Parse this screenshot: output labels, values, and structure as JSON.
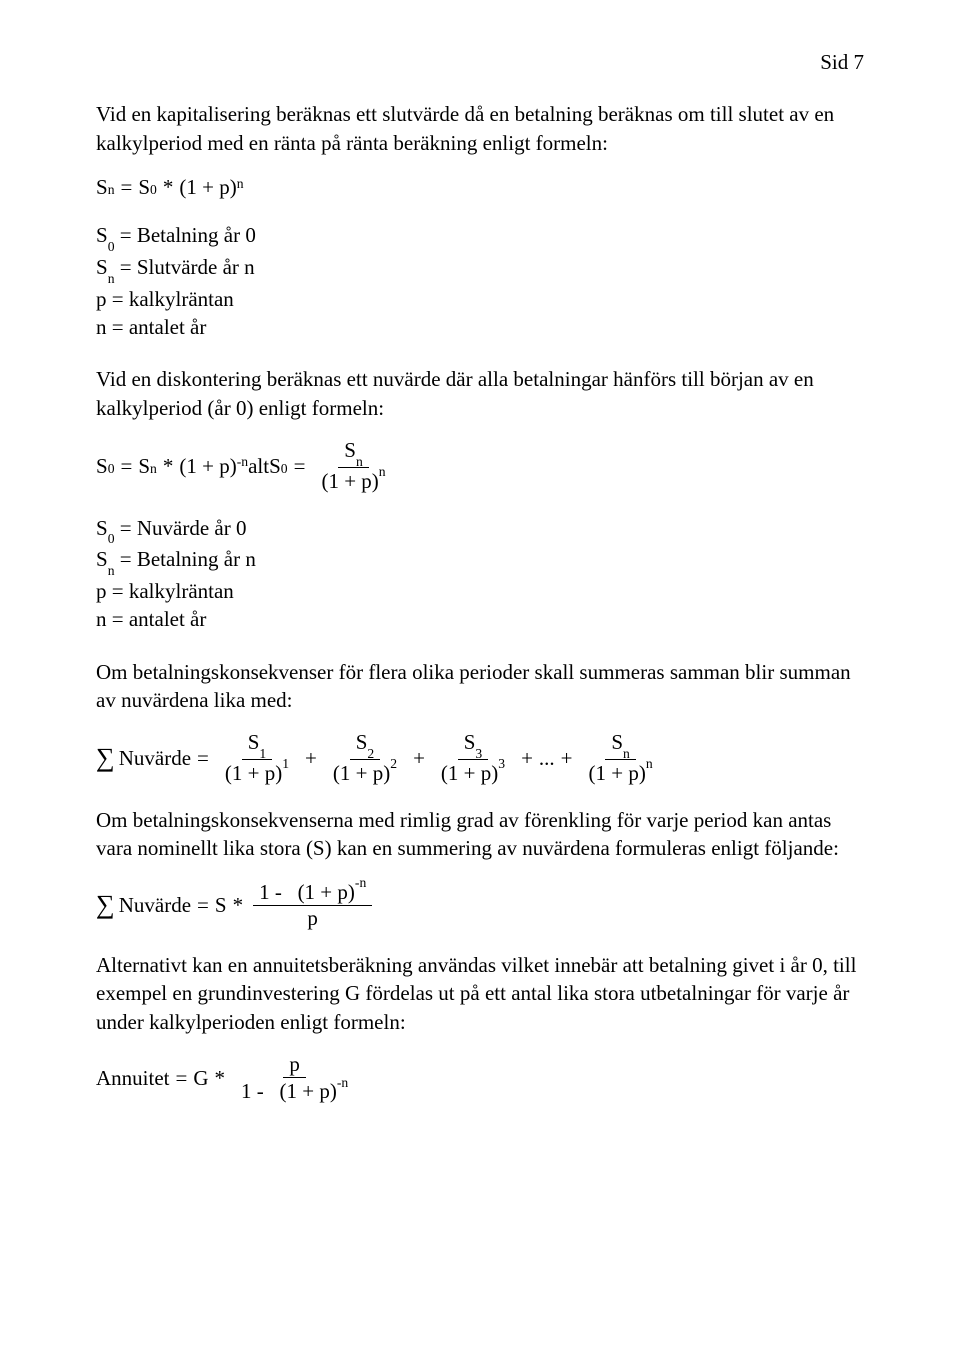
{
  "page": {
    "number": "Sid 7"
  },
  "para": {
    "p1": "Vid en kapitalisering beräknas ett slutvärde då en betalning beräknas om till slutet av en kalkylperiod med en ränta på ränta beräkning enligt formeln:",
    "p2": "Vid en diskontering beräknas ett nuvärde där alla betalningar hänförs till början av en kalkylperiod (år 0) enligt formeln:",
    "p3": "Om betalningskonsekvenser för flera olika perioder skall summeras samman blir summan av nuvärdena lika med:",
    "p4": "Om betalningskonsekvenserna med rimlig grad av förenkling för varje period kan antas vara nominellt lika stora (S) kan en summering av nuvärdena formuleras enligt följande:",
    "p5": "Alternativt kan en annuitetsberäkning användas vilket innebär att betalning givet i år 0, till exempel en grundinvestering G fördelas ut på ett antal lika stora utbetalningar för varje år under kalkylperioden enligt formeln:"
  },
  "defs1": {
    "d1": "S",
    "d1sub": "0",
    "d1rest": " = Betalning år 0",
    "d2": "S",
    "d2sub": "n",
    "d2rest": " = Slutvärde år n",
    "d3": "p = kalkylräntan",
    "d4": "n = antalet år"
  },
  "defs2": {
    "d1": "S",
    "d1sub": "0",
    "d1rest": " = Nuvärde år 0",
    "d2": "S",
    "d2sub": "n",
    "d2rest": " = Betalning år n",
    "d3": "p = kalkylräntan",
    "d4": "n = antalet år"
  },
  "sym": {
    "S": "S",
    "n": "n",
    "zero": "0",
    "one": "1",
    "two": "2",
    "three": "3",
    "neg_n": "-n",
    "eq": "=",
    "plus": "+",
    "times": "*",
    "oneplusp": "(1 + p)",
    "alt": " alt ",
    "p": "p",
    "dots": "...",
    "Nuvarde": "Nuvärde",
    "Annuitet": "Annuitet",
    "G": "G",
    "one_minus": "1 -"
  }
}
